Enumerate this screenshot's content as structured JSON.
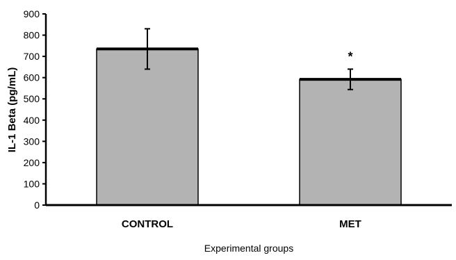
{
  "chart_data": {
    "type": "bar",
    "categories": [
      "CONTROL",
      "MET"
    ],
    "values": [
      735,
      592
    ],
    "errors": [
      95,
      48
    ],
    "annotations": [
      "",
      "*"
    ],
    "xlabel": "Experimental groups",
    "ylabel": "IL-1 Beta (pg/mL)",
    "ylim": [
      0,
      900
    ],
    "yticks": [
      0,
      100,
      200,
      300,
      400,
      500,
      600,
      700,
      800,
      900
    ],
    "grid": false,
    "bar_color": "#b3b3b3"
  }
}
